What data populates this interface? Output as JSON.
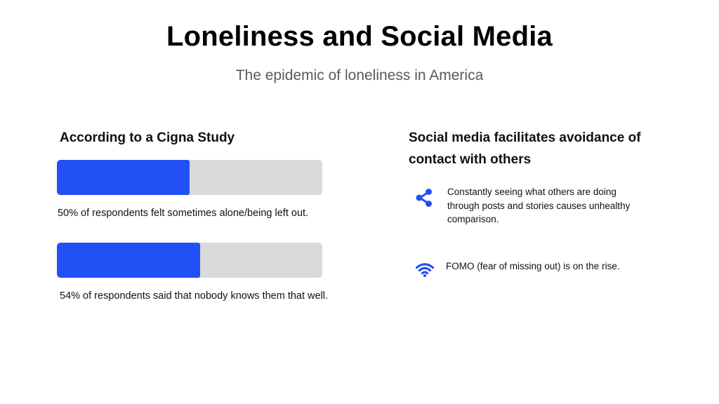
{
  "slide": {
    "title": "Loneliness and Social Media",
    "subtitle": "The epidemic of loneliness in America"
  },
  "left": {
    "heading": "According to a Cigna Study",
    "stats": [
      {
        "percent": 50,
        "caption": "50% of respondents felt sometimes alone/being left out."
      },
      {
        "percent": 54,
        "caption": "54% of respondents said that nobody knows them that well."
      }
    ]
  },
  "right": {
    "heading": "Social media facilitates avoidance of contact with others",
    "points": [
      {
        "icon": "share-icon",
        "text": "Constantly seeing what others are doing through posts and stories causes unhealthy comparison."
      },
      {
        "icon": "wifi-icon",
        "text": "FOMO (fear of missing out)  is on the rise."
      }
    ]
  },
  "colors": {
    "accent": "#2250f4",
    "track": "#d9d9d9",
    "subtitle": "#5a5a5a"
  }
}
